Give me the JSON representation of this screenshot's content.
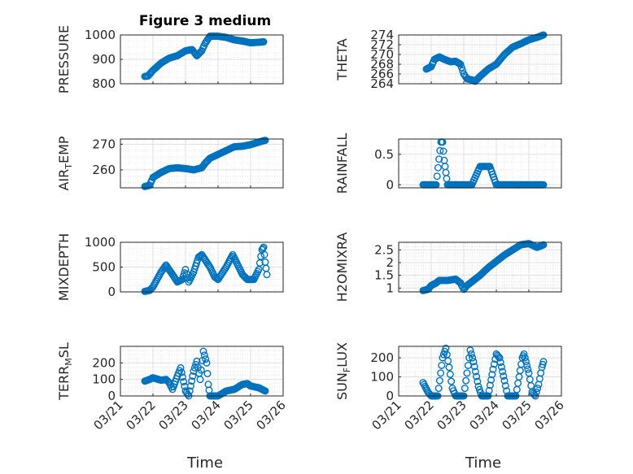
{
  "title": "Figure 3 medium",
  "x_axis_label": "Time",
  "marker_color": "#0072BD",
  "grid": true,
  "x_ticks": [
    "03/21",
    "03/22",
    "03/23",
    "03/24",
    "03/25",
    "03/26"
  ],
  "chart_data": [
    {
      "type": "scatter",
      "ylabel": "PRESSURE",
      "ylabel_sub": "",
      "ylim": [
        800,
        1000
      ],
      "yticks": [
        "800",
        "900",
        "1000"
      ],
      "ytick_values": [
        800,
        900,
        1000
      ],
      "points": [
        [
          21.75,
          830
        ],
        [
          21.85,
          832
        ],
        [
          22.0,
          855
        ],
        [
          22.25,
          885
        ],
        [
          22.5,
          905
        ],
        [
          22.75,
          915
        ],
        [
          23.0,
          935
        ],
        [
          23.2,
          940
        ],
        [
          23.35,
          915
        ],
        [
          23.5,
          935
        ],
        [
          23.6,
          965
        ],
        [
          23.75,
          995
        ],
        [
          24.0,
          995
        ],
        [
          24.25,
          990
        ],
        [
          24.5,
          980
        ],
        [
          24.75,
          975
        ],
        [
          25.0,
          968
        ],
        [
          25.25,
          970
        ],
        [
          25.4,
          972
        ]
      ]
    },
    {
      "type": "scatter",
      "ylabel": "THETA",
      "ylabel_sub": "",
      "ylim": [
        264,
        274
      ],
      "yticks": [
        "264",
        "266",
        "268",
        "270",
        "272",
        "274"
      ],
      "ytick_values": [
        264,
        266,
        268,
        270,
        272,
        274
      ],
      "points": [
        [
          21.85,
          267.0
        ],
        [
          22.0,
          267.5
        ],
        [
          22.1,
          269.0
        ],
        [
          22.25,
          269.5
        ],
        [
          22.4,
          269.0
        ],
        [
          22.6,
          268.5
        ],
        [
          22.75,
          268.6
        ],
        [
          22.9,
          268.0
        ],
        [
          23.0,
          266.0
        ],
        [
          23.1,
          265.0
        ],
        [
          23.25,
          264.8
        ],
        [
          23.35,
          264.5
        ],
        [
          23.5,
          265.5
        ],
        [
          23.75,
          267.0
        ],
        [
          24.0,
          268.0
        ],
        [
          24.25,
          270.0
        ],
        [
          24.5,
          271.5
        ],
        [
          24.75,
          272.2
        ],
        [
          25.0,
          273.0
        ],
        [
          25.25,
          273.5
        ],
        [
          25.45,
          274.0
        ]
      ]
    },
    {
      "type": "scatter",
      "ylabel": "AIR",
      "ylabel_sub": "T",
      "ylabel_tail": "EMP",
      "ylim": [
        253,
        272
      ],
      "yticks": [
        "260",
        "270"
      ],
      "ytick_values": [
        260,
        270
      ],
      "points": [
        [
          21.75,
          253.5
        ],
        [
          21.9,
          254.0
        ],
        [
          22.0,
          257.0
        ],
        [
          22.25,
          259.0
        ],
        [
          22.5,
          260.5
        ],
        [
          22.75,
          260.8
        ],
        [
          23.0,
          260.5
        ],
        [
          23.25,
          260.0
        ],
        [
          23.5,
          260.8
        ],
        [
          23.6,
          262.5
        ],
        [
          23.75,
          264.5
        ],
        [
          24.0,
          266.0
        ],
        [
          24.25,
          267.5
        ],
        [
          24.5,
          269.0
        ],
        [
          24.75,
          269.2
        ],
        [
          25.0,
          269.8
        ],
        [
          25.25,
          270.8
        ],
        [
          25.45,
          271.5
        ]
      ]
    },
    {
      "type": "scatter",
      "ylabel": "RAINFALL",
      "ylabel_sub": "",
      "ylim": [
        -0.05,
        0.75
      ],
      "yticks": [
        "0",
        "0.5"
      ],
      "ytick_values": [
        0,
        0.5
      ],
      "points": [
        [
          21.75,
          0
        ],
        [
          22.0,
          0
        ],
        [
          22.15,
          0
        ],
        [
          22.3,
          0.7
        ],
        [
          22.35,
          0.7
        ],
        [
          22.4,
          0.4
        ],
        [
          22.45,
          0.2
        ],
        [
          22.5,
          0
        ],
        [
          22.75,
          0
        ],
        [
          23.0,
          0
        ],
        [
          23.25,
          0
        ],
        [
          23.5,
          0.3
        ],
        [
          23.75,
          0.3
        ],
        [
          23.8,
          0.3
        ],
        [
          24.0,
          0
        ],
        [
          24.25,
          0
        ],
        [
          24.5,
          0
        ],
        [
          24.75,
          0
        ],
        [
          25.0,
          0
        ],
        [
          25.25,
          0
        ],
        [
          25.45,
          0
        ]
      ]
    },
    {
      "type": "scatter",
      "ylabel": "MIXDEPTH",
      "ylabel_sub": "",
      "ylim": [
        0,
        1000
      ],
      "yticks": [
        "0",
        "500",
        "1000"
      ],
      "ytick_values": [
        0,
        500,
        1000
      ],
      "points": [
        [
          21.75,
          10
        ],
        [
          21.9,
          30
        ],
        [
          22.0,
          100
        ],
        [
          22.25,
          400
        ],
        [
          22.4,
          540
        ],
        [
          22.6,
          350
        ],
        [
          22.75,
          200
        ],
        [
          22.9,
          250
        ],
        [
          23.0,
          450
        ],
        [
          23.1,
          200
        ],
        [
          23.25,
          400
        ],
        [
          23.4,
          700
        ],
        [
          23.5,
          750
        ],
        [
          23.6,
          650
        ],
        [
          23.75,
          500
        ],
        [
          23.9,
          300
        ],
        [
          24.0,
          250
        ],
        [
          24.25,
          500
        ],
        [
          24.45,
          750
        ],
        [
          24.6,
          550
        ],
        [
          24.75,
          350
        ],
        [
          24.9,
          250
        ],
        [
          25.1,
          250
        ],
        [
          25.25,
          450
        ],
        [
          25.35,
          850
        ],
        [
          25.4,
          900
        ],
        [
          25.45,
          600
        ],
        [
          25.5,
          350
        ]
      ]
    },
    {
      "type": "scatter",
      "ylabel": "H2OMIXRA",
      "ylabel_sub": "",
      "ylim": [
        0.85,
        2.8
      ],
      "yticks": [
        "1",
        "1.5",
        "2",
        "2.5"
      ],
      "ytick_values": [
        1,
        1.5,
        2,
        2.5
      ],
      "points": [
        [
          21.75,
          0.9
        ],
        [
          21.9,
          0.95
        ],
        [
          22.0,
          1.1
        ],
        [
          22.15,
          1.2
        ],
        [
          22.25,
          1.3
        ],
        [
          22.5,
          1.3
        ],
        [
          22.75,
          1.35
        ],
        [
          22.9,
          1.2
        ],
        [
          23.0,
          0.95
        ],
        [
          23.1,
          1.1
        ],
        [
          23.25,
          1.25
        ],
        [
          23.5,
          1.5
        ],
        [
          23.75,
          1.8
        ],
        [
          24.0,
          2.05
        ],
        [
          24.25,
          2.3
        ],
        [
          24.5,
          2.5
        ],
        [
          24.75,
          2.7
        ],
        [
          25.0,
          2.75
        ],
        [
          25.25,
          2.6
        ],
        [
          25.45,
          2.7
        ]
      ]
    },
    {
      "type": "scatter",
      "ylabel": "TERR",
      "ylabel_sub": "M",
      "ylabel_tail": "SL",
      "ylim": [
        0,
        300
      ],
      "yticks": [
        "0",
        "100",
        "200"
      ],
      "ytick_values": [
        0,
        100,
        200
      ],
      "points": [
        [
          21.75,
          90
        ],
        [
          21.9,
          100
        ],
        [
          22.0,
          110
        ],
        [
          22.25,
          95
        ],
        [
          22.4,
          100
        ],
        [
          22.5,
          80
        ],
        [
          22.6,
          40
        ],
        [
          22.75,
          120
        ],
        [
          22.85,
          170
        ],
        [
          23.0,
          30
        ],
        [
          23.1,
          0
        ],
        [
          23.25,
          150
        ],
        [
          23.35,
          210
        ],
        [
          23.45,
          100
        ],
        [
          23.55,
          270
        ],
        [
          23.65,
          200
        ],
        [
          23.7,
          70
        ],
        [
          23.75,
          0
        ],
        [
          24.0,
          0
        ],
        [
          24.25,
          30
        ],
        [
          24.5,
          40
        ],
        [
          24.75,
          70
        ],
        [
          24.9,
          75
        ],
        [
          25.0,
          60
        ],
        [
          25.25,
          50
        ],
        [
          25.45,
          30
        ]
      ]
    },
    {
      "type": "scatter",
      "ylabel": "SUN",
      "ylabel_sub": "F",
      "ylabel_tail": "LUX",
      "ylim": [
        0,
        260
      ],
      "yticks": [
        "0",
        "100",
        "200"
      ],
      "ytick_values": [
        0,
        100,
        200
      ],
      "points": [
        [
          21.75,
          70
        ],
        [
          21.9,
          20
        ],
        [
          22.0,
          0
        ],
        [
          22.2,
          0
        ],
        [
          22.35,
          200
        ],
        [
          22.45,
          250
        ],
        [
          22.55,
          150
        ],
        [
          22.65,
          40
        ],
        [
          22.75,
          0
        ],
        [
          23.0,
          0
        ],
        [
          23.1,
          120
        ],
        [
          23.2,
          240
        ],
        [
          23.3,
          180
        ],
        [
          23.45,
          50
        ],
        [
          23.55,
          0
        ],
        [
          23.75,
          0
        ],
        [
          23.9,
          140
        ],
        [
          24.0,
          220
        ],
        [
          24.1,
          200
        ],
        [
          24.25,
          80
        ],
        [
          24.35,
          0
        ],
        [
          24.6,
          0
        ],
        [
          24.7,
          100
        ],
        [
          24.8,
          200
        ],
        [
          24.85,
          220
        ],
        [
          25.0,
          120
        ],
        [
          25.1,
          20
        ],
        [
          25.2,
          0
        ],
        [
          25.3,
          60
        ],
        [
          25.4,
          150
        ],
        [
          25.45,
          180
        ]
      ]
    }
  ]
}
